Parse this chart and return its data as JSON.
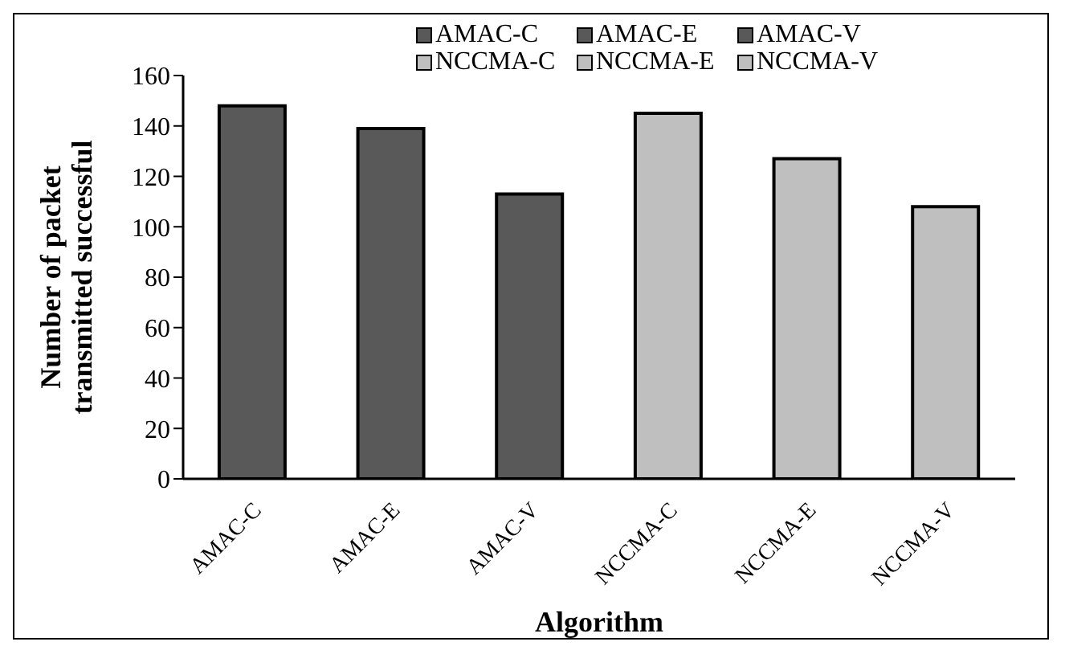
{
  "chart_data": {
    "type": "bar",
    "xlabel": "Algorithm",
    "ylabel": "Number of packet transmitted successful",
    "categories": [
      "AMAC-C",
      "AMAC-E",
      "AMAC-V",
      "NCCMA-C",
      "NCCMA-E",
      "NCCMA-V"
    ],
    "series": [
      {
        "name": "AMAC-C",
        "color": "#595959",
        "values": [
          148,
          null,
          null,
          null,
          null,
          null
        ]
      },
      {
        "name": "AMAC-E",
        "color": "#595959",
        "values": [
          null,
          139,
          null,
          null,
          null,
          null
        ]
      },
      {
        "name": "AMAC-V",
        "color": "#595959",
        "values": [
          null,
          null,
          113,
          null,
          null,
          null
        ]
      },
      {
        "name": "NCCMA-C",
        "color": "#bfbfbf",
        "values": [
          null,
          null,
          null,
          145,
          null,
          null
        ]
      },
      {
        "name": "NCCMA-E",
        "color": "#bfbfbf",
        "values": [
          null,
          null,
          null,
          null,
          127,
          null
        ]
      },
      {
        "name": "NCCMA-V",
        "color": "#bfbfbf",
        "values": [
          null,
          null,
          null,
          null,
          null,
          108
        ]
      }
    ],
    "stacked": true,
    "ylim": [
      0,
      160
    ],
    "yticks": [
      0,
      20,
      40,
      60,
      80,
      100,
      120,
      140,
      160
    ],
    "grid": false,
    "legend": "top"
  }
}
